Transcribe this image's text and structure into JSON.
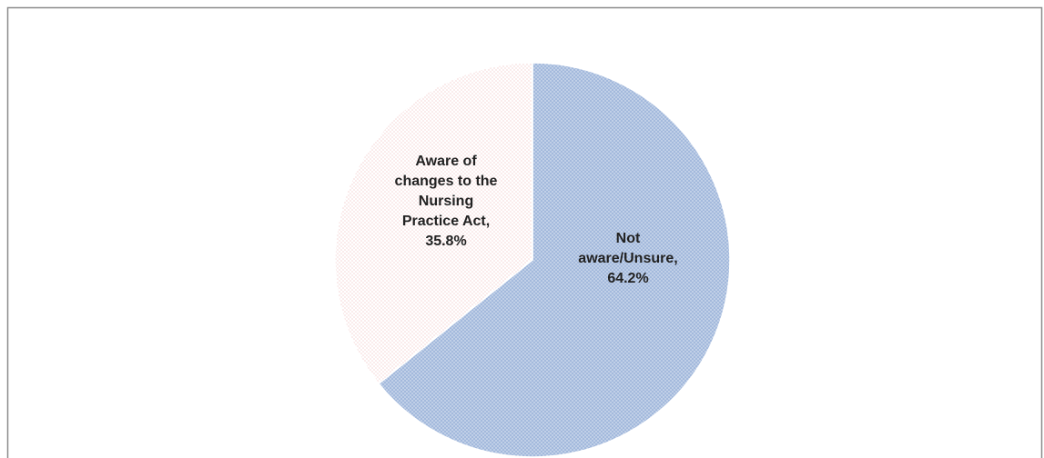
{
  "chart_data": {
    "type": "pie",
    "categories": [
      "Not aware/Unsure,",
      "Aware of changes to the Nursing Practice Act,"
    ],
    "values": [
      64.2,
      35.8
    ],
    "value_labels": [
      "64.2%",
      "35.8%"
    ],
    "colors": [
      "#a3b9dc",
      "#e8a0a0"
    ],
    "start_angle": 0,
    "direction": "clockwise"
  }
}
